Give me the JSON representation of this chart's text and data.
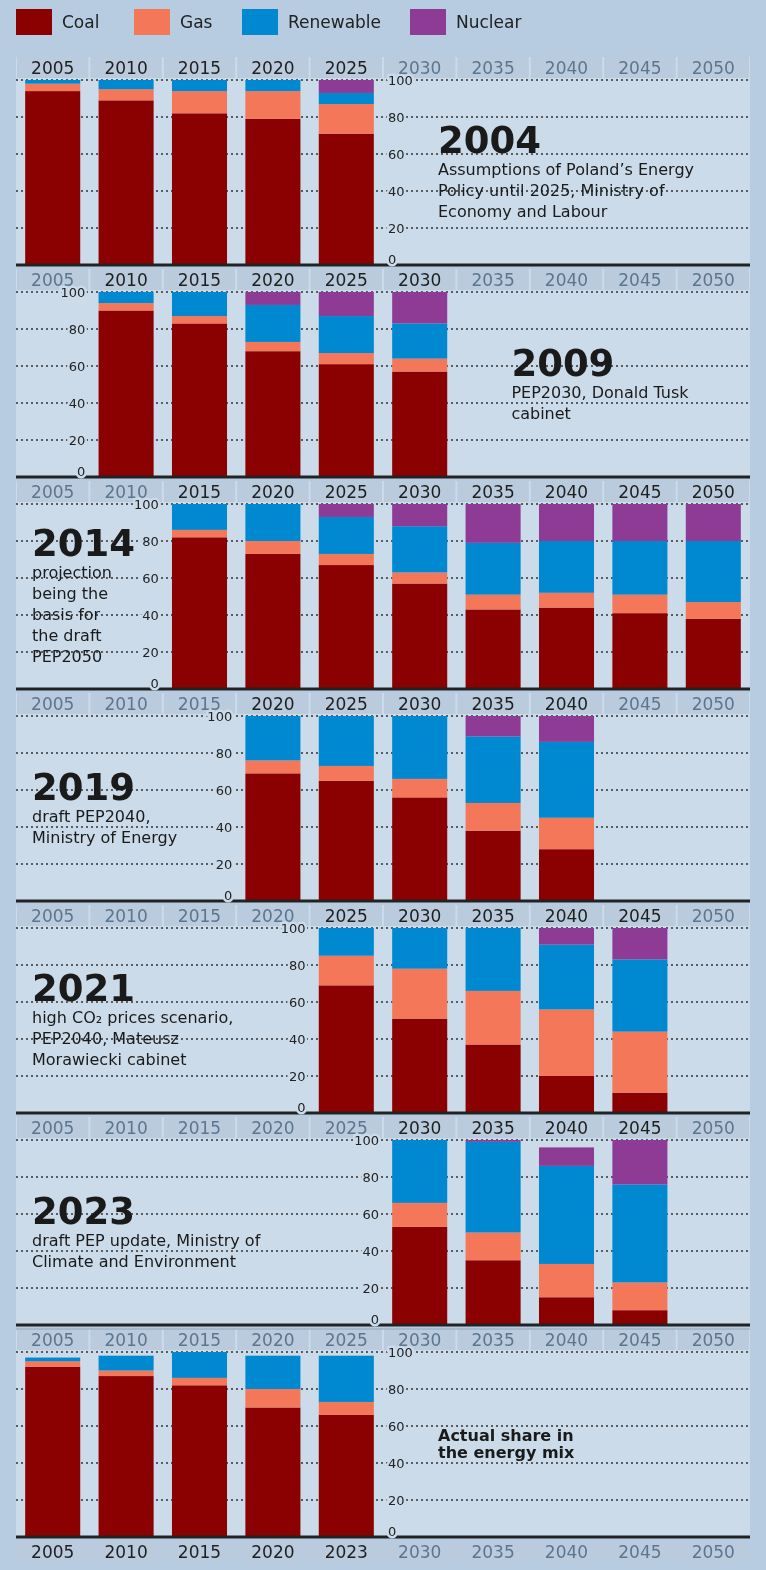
{
  "chart_data": [
    {
      "type": "bar",
      "stacked": true,
      "title": "2004",
      "subtitle": "Assumptions of Poland’s Energy Policy until 2025, Ministry of Economy and Labour",
      "categories": [
        "2005",
        "2010",
        "2015",
        "2020",
        "2025",
        "2030",
        "2035",
        "2040",
        "2045",
        "2050"
      ],
      "ylim": [
        0,
        100
      ],
      "yticks": [
        0,
        20,
        40,
        60,
        80,
        100
      ],
      "grid": "y",
      "legend": "top",
      "series": [
        {
          "name": "Coal",
          "color": "#8b0000",
          "values": [
            94,
            89,
            82,
            79,
            71,
            null,
            null,
            null,
            null,
            null
          ]
        },
        {
          "name": "Gas",
          "color": "#f4775a",
          "values": [
            4,
            6,
            12,
            15,
            16,
            null,
            null,
            null,
            null,
            null
          ]
        },
        {
          "name": "Renewable",
          "color": "#0089d0",
          "values": [
            2,
            5,
            6,
            6,
            6,
            null,
            null,
            null,
            null,
            null
          ]
        },
        {
          "name": "Nuclear",
          "color": "#8e3b96",
          "values": [
            null,
            null,
            null,
            null,
            7,
            null,
            null,
            null,
            null,
            null
          ]
        }
      ]
    },
    {
      "type": "bar",
      "stacked": true,
      "title": "2009",
      "subtitle": "PEP2030, Donald Tusk cabinet",
      "categories": [
        "2005",
        "2010",
        "2015",
        "2020",
        "2025",
        "2030",
        "2035",
        "2040",
        "2045",
        "2050"
      ],
      "ylim": [
        0,
        100
      ],
      "yticks": [
        0,
        20,
        40,
        60,
        80,
        100
      ],
      "grid": "y",
      "series": [
        {
          "color": "#8b0000",
          "values": [
            null,
            90,
            83,
            68,
            61,
            57,
            null,
            null,
            null,
            null
          ]
        },
        {
          "color": "#f4775a",
          "values": [
            null,
            4,
            4,
            5,
            6,
            7,
            null,
            null,
            null,
            null
          ]
        },
        {
          "color": "#0089d0",
          "values": [
            null,
            6,
            13,
            20,
            20,
            19,
            null,
            null,
            null,
            null
          ]
        },
        {
          "color": "#8e3b96",
          "values": [
            null,
            null,
            null,
            7,
            13,
            17,
            null,
            null,
            null,
            null
          ]
        }
      ]
    },
    {
      "type": "bar",
      "stacked": true,
      "title": "2014",
      "subtitle": "projection being the basis for the draft PEP2050",
      "categories": [
        "2005",
        "2010",
        "2015",
        "2020",
        "2025",
        "2030",
        "2035",
        "2040",
        "2045",
        "2050"
      ],
      "ylim": [
        0,
        100
      ],
      "yticks": [
        0,
        20,
        40,
        60,
        80,
        100
      ],
      "grid": "y",
      "series": [
        {
          "color": "#8b0000",
          "values": [
            null,
            null,
            82,
            73,
            67,
            57,
            43,
            44,
            41,
            38
          ]
        },
        {
          "color": "#f4775a",
          "values": [
            null,
            null,
            4,
            7,
            6,
            6,
            8,
            8,
            10,
            9
          ]
        },
        {
          "color": "#0089d0",
          "values": [
            null,
            null,
            14,
            20,
            20,
            25,
            28,
            28,
            29,
            33
          ]
        },
        {
          "color": "#8e3b96",
          "values": [
            null,
            null,
            null,
            null,
            7,
            12,
            21,
            20,
            20,
            20
          ]
        }
      ]
    },
    {
      "type": "bar",
      "stacked": true,
      "title": "2019",
      "subtitle": "draft PEP2040, Ministry of Energy",
      "categories": [
        "2005",
        "2010",
        "2015",
        "2020",
        "2025",
        "2030",
        "2035",
        "2040",
        "2045",
        "2050"
      ],
      "ylim": [
        0,
        100
      ],
      "yticks": [
        0,
        20,
        40,
        60,
        80,
        100
      ],
      "grid": "y",
      "series": [
        {
          "color": "#8b0000",
          "values": [
            null,
            null,
            null,
            69,
            65,
            56,
            38,
            28,
            null,
            null
          ]
        },
        {
          "color": "#f4775a",
          "values": [
            null,
            null,
            null,
            7,
            8,
            10,
            15,
            17,
            null,
            null
          ]
        },
        {
          "color": "#0089d0",
          "values": [
            null,
            null,
            null,
            24,
            27,
            34,
            36,
            41,
            null,
            null
          ]
        },
        {
          "color": "#8e3b96",
          "values": [
            null,
            null,
            null,
            null,
            null,
            null,
            11,
            14,
            null,
            null
          ]
        }
      ]
    },
    {
      "type": "bar",
      "stacked": true,
      "title": "2021",
      "subtitle": "high CO₂ prices scenario, PEP2040, Mateusz Morawiecki cabinet",
      "categories": [
        "2005",
        "2010",
        "2015",
        "2020",
        "2025",
        "2030",
        "2035",
        "2040",
        "2045",
        "2050"
      ],
      "ylim": [
        0,
        100
      ],
      "yticks": [
        0,
        20,
        40,
        60,
        80,
        100
      ],
      "grid": "y",
      "series": [
        {
          "color": "#8b0000",
          "values": [
            null,
            null,
            null,
            null,
            69,
            51,
            37,
            20,
            11,
            null
          ]
        },
        {
          "color": "#f4775a",
          "values": [
            null,
            null,
            null,
            null,
            16,
            27,
            29,
            36,
            33,
            null
          ]
        },
        {
          "color": "#0089d0",
          "values": [
            null,
            null,
            null,
            null,
            15,
            22,
            34,
            35,
            39,
            null
          ]
        },
        {
          "color": "#8e3b96",
          "values": [
            null,
            null,
            null,
            null,
            null,
            null,
            null,
            9,
            17,
            null
          ]
        }
      ]
    },
    {
      "type": "bar",
      "stacked": true,
      "title": "2023",
      "subtitle": "draft PEP update, Ministry of Climate and Environment",
      "categories": [
        "2005",
        "2010",
        "2015",
        "2020",
        "2025",
        "2030",
        "2035",
        "2040",
        "2045",
        "2050"
      ],
      "ylim": [
        0,
        100
      ],
      "yticks": [
        0,
        20,
        40,
        60,
        80,
        100
      ],
      "grid": "y",
      "series": [
        {
          "color": "#8b0000",
          "values": [
            null,
            null,
            null,
            null,
            null,
            53,
            35,
            15,
            8,
            null
          ]
        },
        {
          "color": "#f4775a",
          "values": [
            null,
            null,
            null,
            null,
            null,
            13,
            15,
            18,
            15,
            null
          ]
        },
        {
          "color": "#0089d0",
          "values": [
            null,
            null,
            null,
            null,
            null,
            34,
            49,
            53,
            53,
            null
          ]
        },
        {
          "color": "#8e3b96",
          "values": [
            null,
            null,
            null,
            null,
            null,
            null,
            1,
            10,
            24,
            null
          ]
        }
      ]
    },
    {
      "type": "bar",
      "stacked": true,
      "title": "Actual share in the energy mix",
      "categories": [
        "2005",
        "2010",
        "2015",
        "2020",
        "2023",
        "2030",
        "2035",
        "2040",
        "2045",
        "2050"
      ],
      "ylim": [
        0,
        100
      ],
      "yticks": [
        0,
        20,
        40,
        60,
        80,
        100
      ],
      "grid": "y",
      "x2lim": [
        2002.5,
        2052.5
      ],
      "x2ticks": [
        2005,
        2010,
        2015,
        2020,
        2025,
        2030,
        2035,
        2040,
        2045,
        2050
      ],
      "series": [
        {
          "color": "#8b0000",
          "values": [
            92,
            87,
            82,
            70,
            66,
            null,
            null,
            null,
            null,
            null
          ]
        },
        {
          "color": "#f4775a",
          "values": [
            3,
            3,
            4,
            10,
            7,
            null,
            null,
            null,
            null,
            null
          ]
        },
        {
          "color": "#0089d0",
          "values": [
            2,
            8,
            14,
            18,
            25,
            null,
            null,
            null,
            null,
            null
          ]
        }
      ]
    }
  ]
}
